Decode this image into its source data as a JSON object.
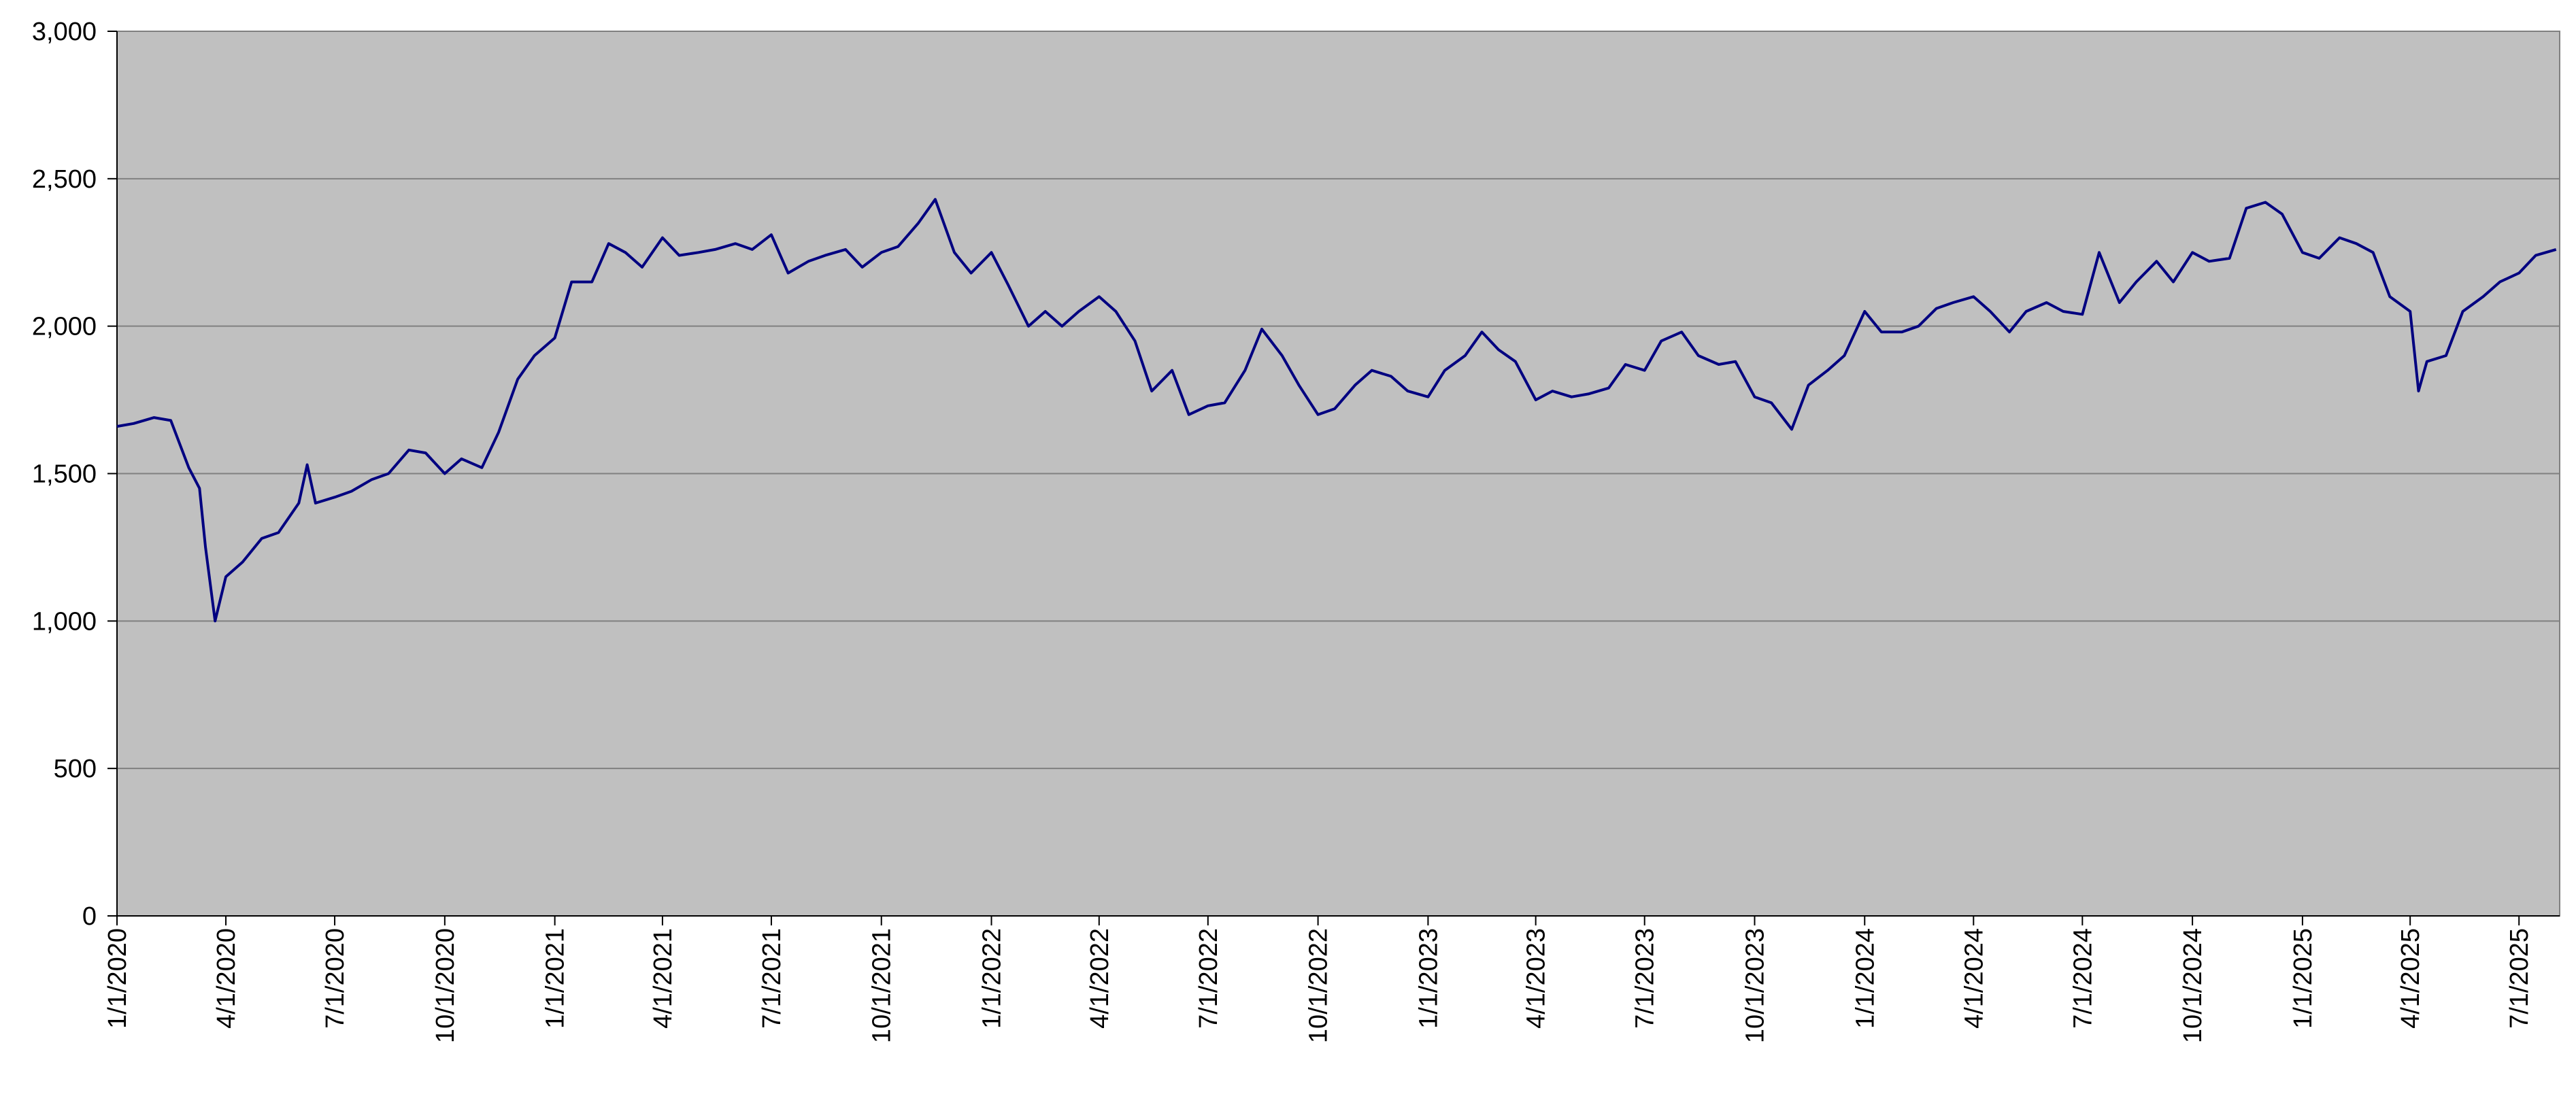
{
  "chart_data": {
    "type": "line",
    "x": [
      "1/1/2020",
      "1/15/2020",
      "2/1/2020",
      "2/15/2020",
      "3/1/2020",
      "3/10/2020",
      "3/15/2020",
      "3/23/2020",
      "4/1/2020",
      "4/15/2020",
      "5/1/2020",
      "5/15/2020",
      "6/1/2020",
      "6/8/2020",
      "6/15/2020",
      "7/1/2020",
      "7/15/2020",
      "8/1/2020",
      "8/15/2020",
      "9/1/2020",
      "9/15/2020",
      "10/1/2020",
      "10/15/2020",
      "11/1/2020",
      "11/15/2020",
      "12/1/2020",
      "12/15/2020",
      "1/1/2021",
      "1/15/2021",
      "2/1/2021",
      "2/15/2021",
      "3/1/2021",
      "3/15/2021",
      "4/1/2021",
      "4/15/2021",
      "5/1/2021",
      "5/15/2021",
      "6/1/2021",
      "6/15/2021",
      "7/1/2021",
      "7/15/2021",
      "8/1/2021",
      "8/15/2021",
      "9/1/2021",
      "9/15/2021",
      "10/1/2021",
      "10/15/2021",
      "11/1/2021",
      "11/15/2021",
      "12/1/2021",
      "12/15/2021",
      "1/1/2022",
      "1/15/2022",
      "2/1/2022",
      "2/15/2022",
      "3/1/2022",
      "3/15/2022",
      "4/1/2022",
      "4/15/2022",
      "5/1/2022",
      "5/15/2022",
      "6/1/2022",
      "6/15/2022",
      "7/1/2022",
      "7/15/2022",
      "8/1/2022",
      "8/15/2022",
      "9/1/2022",
      "9/15/2022",
      "10/1/2022",
      "10/15/2022",
      "11/1/2022",
      "11/15/2022",
      "12/1/2022",
      "12/15/2022",
      "1/1/2023",
      "1/15/2023",
      "2/1/2023",
      "2/15/2023",
      "3/1/2023",
      "3/15/2023",
      "4/1/2023",
      "4/15/2023",
      "5/1/2023",
      "5/15/2023",
      "6/1/2023",
      "6/15/2023",
      "7/1/2023",
      "7/15/2023",
      "8/1/2023",
      "8/15/2023",
      "9/1/2023",
      "9/15/2023",
      "10/1/2023",
      "10/15/2023",
      "11/1/2023",
      "11/15/2023",
      "12/1/2023",
      "12/15/2023",
      "1/1/2024",
      "1/15/2024",
      "2/1/2024",
      "2/15/2024",
      "3/1/2024",
      "3/15/2024",
      "4/1/2024",
      "4/15/2024",
      "5/1/2024",
      "5/15/2024",
      "6/1/2024",
      "6/15/2024",
      "7/1/2024",
      "7/15/2024",
      "8/1/2024",
      "8/15/2024",
      "9/1/2024",
      "9/15/2024",
      "10/1/2024",
      "10/15/2024",
      "11/1/2024",
      "11/15/2024",
      "12/1/2024",
      "12/15/2024",
      "1/1/2025",
      "1/15/2025",
      "2/1/2025",
      "2/15/2025",
      "3/1/2025",
      "3/15/2025",
      "4/1/2025",
      "4/8/2025",
      "4/15/2025",
      "5/1/2025",
      "5/15/2025",
      "6/1/2025",
      "6/15/2025",
      "7/1/2025",
      "7/15/2025",
      "8/1/2025"
    ],
    "series": [
      {
        "color": "#000080",
        "values": [
          1660,
          1670,
          1690,
          1680,
          1520,
          1450,
          1250,
          1000,
          1150,
          1200,
          1280,
          1300,
          1400,
          1530,
          1400,
          1420,
          1440,
          1480,
          1500,
          1580,
          1570,
          1500,
          1550,
          1520,
          1640,
          1820,
          1900,
          1960,
          2150,
          2150,
          2280,
          2250,
          2200,
          2300,
          2240,
          2250,
          2260,
          2280,
          2260,
          2310,
          2180,
          2220,
          2240,
          2260,
          2200,
          2250,
          2270,
          2350,
          2430,
          2250,
          2180,
          2250,
          2140,
          2000,
          2050,
          2000,
          2050,
          2100,
          2050,
          1950,
          1780,
          1850,
          1700,
          1730,
          1740,
          1850,
          1990,
          1900,
          1800,
          1700,
          1720,
          1800,
          1850,
          1830,
          1780,
          1760,
          1850,
          1900,
          1980,
          1920,
          1880,
          1750,
          1780,
          1760,
          1770,
          1790,
          1870,
          1850,
          1950,
          1980,
          1900,
          1870,
          1880,
          1760,
          1740,
          1650,
          1800,
          1850,
          1900,
          2050,
          1980,
          1980,
          2000,
          2060,
          2080,
          2100,
          2050,
          1980,
          2050,
          2080,
          2050,
          2040,
          2250,
          2080,
          2150,
          2220,
          2150,
          2250,
          2220,
          2230,
          2400,
          2420,
          2380,
          2250,
          2230,
          2300,
          2280,
          2250,
          2100,
          2050,
          1780,
          1880,
          1900,
          2050,
          2100,
          2150,
          2180,
          2240,
          2260
        ]
      }
    ],
    "xlim": [
      "1/1/2020",
      "8/4/2025"
    ],
    "xticks": [
      "1/1/2020",
      "4/1/2020",
      "7/1/2020",
      "10/1/2020",
      "1/1/2021",
      "4/1/2021",
      "7/1/2021",
      "10/1/2021",
      "1/1/2022",
      "4/1/2022",
      "7/1/2022",
      "10/1/2022",
      "1/1/2023",
      "4/1/2023",
      "7/1/2023",
      "10/1/2023",
      "1/1/2024",
      "4/1/2024",
      "7/1/2024",
      "10/1/2024",
      "1/1/2025",
      "4/1/2025",
      "7/1/2025"
    ],
    "ylim": [
      0,
      3000
    ],
    "yticks": [
      0,
      {
        "value": 500,
        "label": "500"
      },
      {
        "value": 1000,
        "label": "1,000"
      },
      {
        "value": 1500,
        "label": "1,500"
      },
      {
        "value": 2000,
        "label": "2,000"
      },
      {
        "value": 2500,
        "label": "2,500"
      },
      {
        "value": 3000,
        "label": "3,000"
      }
    ],
    "grid": true,
    "plot_background": "#c0c0c0"
  }
}
